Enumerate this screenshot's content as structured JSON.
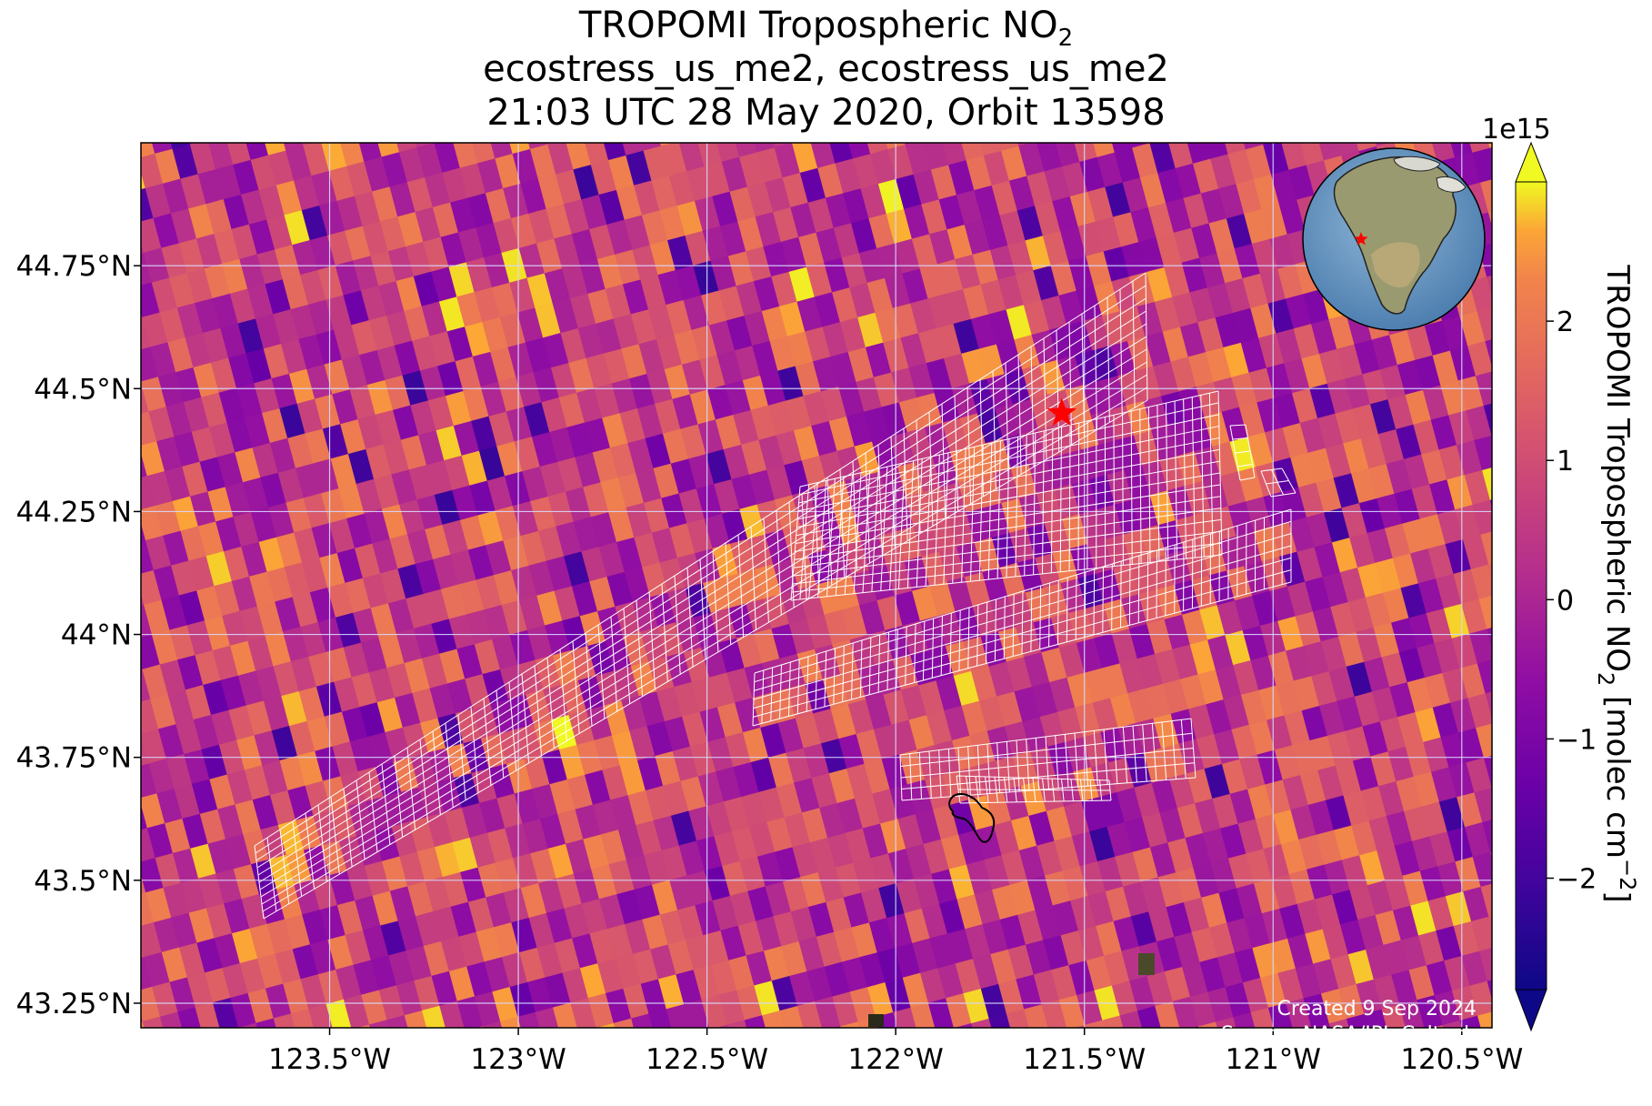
{
  "title": {
    "line1": "TROPOMI Tropospheric NO",
    "line1_sub": "2",
    "line2": "ecostress_us_me2, ecostress_us_me2",
    "line3": "21:03 UTC 28 May 2020, Orbit 13598"
  },
  "map": {
    "extent": {
      "lon_min": -124.0,
      "lon_max": -120.42,
      "lat_min": 43.2,
      "lat_max": 45.0
    },
    "lon_ticks": [
      {
        "value": -123.5,
        "label": "123.5°W"
      },
      {
        "value": -123.0,
        "label": "123°W"
      },
      {
        "value": -122.5,
        "label": "122.5°W"
      },
      {
        "value": -122.0,
        "label": "122°W"
      },
      {
        "value": -121.5,
        "label": "121.5°W"
      },
      {
        "value": -121.0,
        "label": "121°W"
      },
      {
        "value": -120.5,
        "label": "120.5°W"
      }
    ],
    "lat_ticks": [
      {
        "value": 44.75,
        "label": "44.75°N"
      },
      {
        "value": 44.5,
        "label": "44.5°N"
      },
      {
        "value": 44.25,
        "label": "44.25°N"
      },
      {
        "value": 44.0,
        "label": "44°N"
      },
      {
        "value": 43.75,
        "label": "43.75°N"
      },
      {
        "value": 43.5,
        "label": "43.5°N"
      },
      {
        "value": 43.25,
        "label": "43.25°N"
      }
    ],
    "gridlines": true,
    "site_marker": {
      "lon": -121.56,
      "lat": 44.45,
      "color": "#ff0000",
      "icon": "star-icon"
    },
    "colormap": "plasma",
    "pixel_color_seed": 13598
  },
  "colorbar": {
    "exponent_label": "1e15",
    "label_main": "TROPOMI Tropospheric NO",
    "label_sub1": "2",
    "label_mid": " [molec cm",
    "label_sup": "−2",
    "label_end": "]",
    "range": [
      -2.8,
      3.0
    ],
    "extend": "both",
    "ticks": [
      {
        "value": 2,
        "label": "2"
      },
      {
        "value": 1,
        "label": "1"
      },
      {
        "value": 0,
        "label": "0"
      },
      {
        "value": -1,
        "label": "−1"
      },
      {
        "value": -2,
        "label": "−2"
      }
    ]
  },
  "inset_globe": {
    "icon": "globe-icon",
    "marker_color": "#ff0000"
  },
  "credits": {
    "created": "Created 9 Sep 2024",
    "source": "Source: NASA/JPL-Caltech"
  }
}
